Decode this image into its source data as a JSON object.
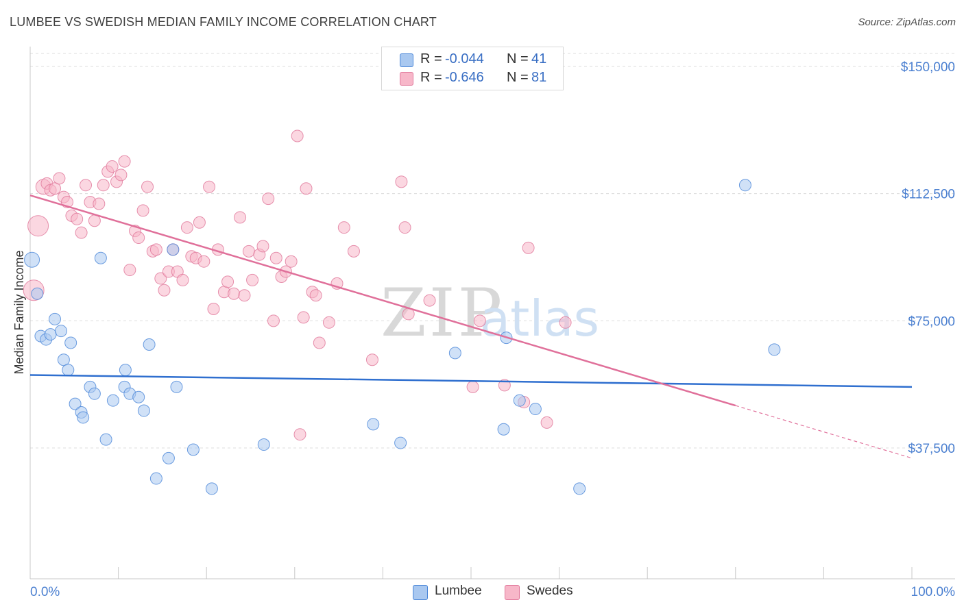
{
  "title": "LUMBEE VS SWEDISH MEDIAN FAMILY INCOME CORRELATION CHART",
  "source": "Source: ZipAtlas.com",
  "watermark": {
    "zip": "ZIP",
    "atlas": "atlas"
  },
  "legend": {
    "rows": [
      {
        "r_label": "R =",
        "r_value": "-0.044",
        "n_label": "N =",
        "n_value": "41",
        "color": "#a9c8f0"
      },
      {
        "r_label": "R =",
        "r_value": "-0.646",
        "n_label": "N =",
        "n_value": "81",
        "color": "#f7b7c9"
      }
    ]
  },
  "bottom_legend": [
    {
      "label": "Lumbee",
      "color": "#a9c8f0"
    },
    {
      "label": "Swedes",
      "color": "#f7b7c9"
    }
  ],
  "chart_data": {
    "type": "scatter",
    "title": "LUMBEE VS SWEDISH MEDIAN FAMILY INCOME CORRELATION CHART",
    "xlabel": "",
    "ylabel": "Median Family Income",
    "xlim": [
      0,
      100
    ],
    "ylim": [
      0,
      155000
    ],
    "y_ticks": [
      {
        "value": 150000,
        "label": "$150,000"
      },
      {
        "value": 112500,
        "label": "$112,500"
      },
      {
        "value": 75000,
        "label": "$75,000"
      },
      {
        "value": 37500,
        "label": "$37,500"
      }
    ],
    "x_tick_labels": {
      "min": "0.0%",
      "max": "100.0%"
    },
    "x_minor_ticks": [
      0,
      10,
      20,
      30,
      40,
      50,
      60,
      70,
      80,
      90,
      100
    ],
    "grid": true,
    "series": [
      {
        "name": "Lumbee",
        "color": "#4a86d8",
        "fill": "#a9c8f0",
        "trend": {
          "x0": 0,
          "y0": 59000,
          "x1": 100,
          "y1": 55500,
          "color": "#2f6fcf"
        },
        "points": [
          [
            0.2,
            93000,
            2
          ],
          [
            0.8,
            83000,
            1
          ],
          [
            1.2,
            70500,
            1
          ],
          [
            1.8,
            69500,
            1
          ],
          [
            2.3,
            71000,
            1
          ],
          [
            2.8,
            75500,
            1
          ],
          [
            3.5,
            72000,
            1
          ],
          [
            3.8,
            63500,
            1
          ],
          [
            4.3,
            60500,
            1
          ],
          [
            4.6,
            68500,
            1
          ],
          [
            5.1,
            50500,
            1
          ],
          [
            5.8,
            48000,
            1
          ],
          [
            6.0,
            46500,
            1
          ],
          [
            6.8,
            55500,
            1
          ],
          [
            7.3,
            53500,
            1
          ],
          [
            8.0,
            93500,
            1
          ],
          [
            8.6,
            40000,
            1
          ],
          [
            9.4,
            51500,
            1
          ],
          [
            10.7,
            55500,
            1
          ],
          [
            10.8,
            60500,
            1
          ],
          [
            11.3,
            53500,
            1
          ],
          [
            12.3,
            52500,
            1
          ],
          [
            12.9,
            48500,
            1
          ],
          [
            13.5,
            68000,
            1
          ],
          [
            14.3,
            28500,
            1
          ],
          [
            15.7,
            34500,
            1
          ],
          [
            16.2,
            96000,
            1
          ],
          [
            16.6,
            55500,
            1
          ],
          [
            18.5,
            37000,
            1
          ],
          [
            20.6,
            25500,
            1
          ],
          [
            26.5,
            38500,
            1
          ],
          [
            38.9,
            44500,
            1
          ],
          [
            42.0,
            39000,
            1
          ],
          [
            48.2,
            65500,
            1
          ],
          [
            53.7,
            43000,
            1
          ],
          [
            54.0,
            70000,
            1
          ],
          [
            55.5,
            51500,
            1
          ],
          [
            57.3,
            49000,
            1
          ],
          [
            62.3,
            25500,
            1
          ],
          [
            81.1,
            115000,
            1
          ],
          [
            84.4,
            66500,
            1
          ]
        ]
      },
      {
        "name": "Swedes",
        "color": "#e0779a",
        "fill": "#f7b7c9",
        "trend": {
          "x0": 0,
          "y0": 112000,
          "x1": 80,
          "y1": 50000,
          "dash_x1": 100,
          "dash_y1": 34500,
          "color": "#e0709a"
        },
        "points": [
          [
            0.4,
            84000,
            3
          ],
          [
            0.9,
            103000,
            3
          ],
          [
            1.5,
            114500,
            2
          ],
          [
            1.9,
            115500,
            1
          ],
          [
            2.3,
            113500,
            1
          ],
          [
            2.8,
            114000,
            1
          ],
          [
            3.3,
            117000,
            1
          ],
          [
            3.8,
            111500,
            1
          ],
          [
            4.2,
            110000,
            1
          ],
          [
            4.7,
            106000,
            1
          ],
          [
            5.3,
            105000,
            1
          ],
          [
            5.8,
            101000,
            1
          ],
          [
            6.3,
            115000,
            1
          ],
          [
            6.8,
            110000,
            1
          ],
          [
            7.3,
            104500,
            1
          ],
          [
            7.8,
            109500,
            1
          ],
          [
            8.3,
            115000,
            1
          ],
          [
            8.8,
            119000,
            1
          ],
          [
            9.3,
            120500,
            1
          ],
          [
            9.8,
            116000,
            1
          ],
          [
            10.3,
            118000,
            1
          ],
          [
            10.7,
            122000,
            1
          ],
          [
            11.3,
            90000,
            1
          ],
          [
            11.9,
            101500,
            1
          ],
          [
            12.3,
            99500,
            1
          ],
          [
            12.8,
            107500,
            1
          ],
          [
            13.3,
            114500,
            1
          ],
          [
            13.9,
            95500,
            1
          ],
          [
            14.3,
            96000,
            1
          ],
          [
            14.8,
            87500,
            1
          ],
          [
            15.2,
            84000,
            1
          ],
          [
            15.7,
            89500,
            1
          ],
          [
            16.2,
            96000,
            1
          ],
          [
            16.7,
            89500,
            1
          ],
          [
            17.3,
            87000,
            1
          ],
          [
            17.8,
            102500,
            1
          ],
          [
            18.3,
            94000,
            1
          ],
          [
            18.8,
            93500,
            1
          ],
          [
            19.2,
            104000,
            1
          ],
          [
            19.7,
            92500,
            1
          ],
          [
            20.3,
            114500,
            1
          ],
          [
            20.8,
            78500,
            1
          ],
          [
            21.3,
            96000,
            1
          ],
          [
            22.0,
            83500,
            1
          ],
          [
            22.4,
            86500,
            1
          ],
          [
            23.1,
            83000,
            1
          ],
          [
            23.8,
            105500,
            1
          ],
          [
            24.3,
            82500,
            1
          ],
          [
            24.8,
            95500,
            1
          ],
          [
            25.2,
            87000,
            1
          ],
          [
            26.0,
            94500,
            1
          ],
          [
            26.4,
            97000,
            1
          ],
          [
            27.0,
            111000,
            1
          ],
          [
            27.6,
            75000,
            1
          ],
          [
            27.9,
            93500,
            1
          ],
          [
            28.5,
            88000,
            1
          ],
          [
            29.0,
            89500,
            1
          ],
          [
            29.6,
            92500,
            1
          ],
          [
            30.3,
            129500,
            1
          ],
          [
            30.6,
            41500,
            1
          ],
          [
            31.0,
            76000,
            1
          ],
          [
            31.3,
            114000,
            1
          ],
          [
            32.0,
            83500,
            1
          ],
          [
            32.4,
            82500,
            1
          ],
          [
            32.8,
            68500,
            1
          ],
          [
            33.9,
            74500,
            1
          ],
          [
            34.8,
            86000,
            1
          ],
          [
            35.6,
            102500,
            1
          ],
          [
            36.7,
            95500,
            1
          ],
          [
            38.8,
            63500,
            1
          ],
          [
            42.1,
            116000,
            1
          ],
          [
            42.5,
            102500,
            1
          ],
          [
            42.9,
            77000,
            1
          ],
          [
            45.3,
            81000,
            1
          ],
          [
            50.2,
            55500,
            1
          ],
          [
            51.0,
            75000,
            1
          ],
          [
            53.8,
            56000,
            1
          ],
          [
            56.0,
            51000,
            1
          ],
          [
            56.5,
            96500,
            1
          ],
          [
            58.6,
            45000,
            1
          ],
          [
            60.7,
            74500,
            1
          ]
        ]
      }
    ]
  }
}
